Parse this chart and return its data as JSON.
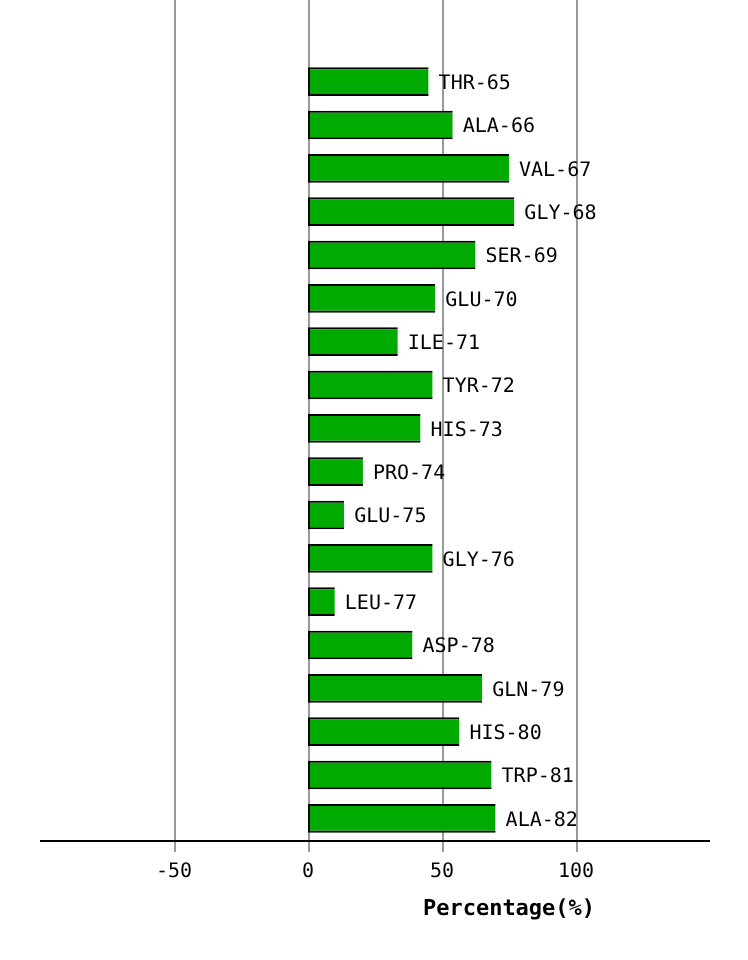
{
  "chart_data": {
    "type": "bar",
    "orientation": "horizontal",
    "xlabel": "Percentage(%)",
    "categories": [
      "THR-65",
      "ALA-66",
      "VAL-67",
      "GLY-68",
      "SER-69",
      "GLU-70",
      "ILE-71",
      "TYR-72",
      "HIS-73",
      "PRO-74",
      "GLU-75",
      "GLY-76",
      "LEU-77",
      "ASP-78",
      "GLN-79",
      "HIS-80",
      "TRP-81",
      "ALA-82"
    ],
    "values": [
      45,
      54,
      75,
      77,
      62.5,
      47.5,
      33.5,
      46.5,
      42,
      20.5,
      13.5,
      46.5,
      10,
      39,
      65,
      56.5,
      68.5,
      70
    ],
    "color": "#00aa00",
    "xlim": [
      -100,
      150
    ],
    "xticks": [
      -50,
      0,
      50,
      100
    ],
    "grid": "x"
  }
}
